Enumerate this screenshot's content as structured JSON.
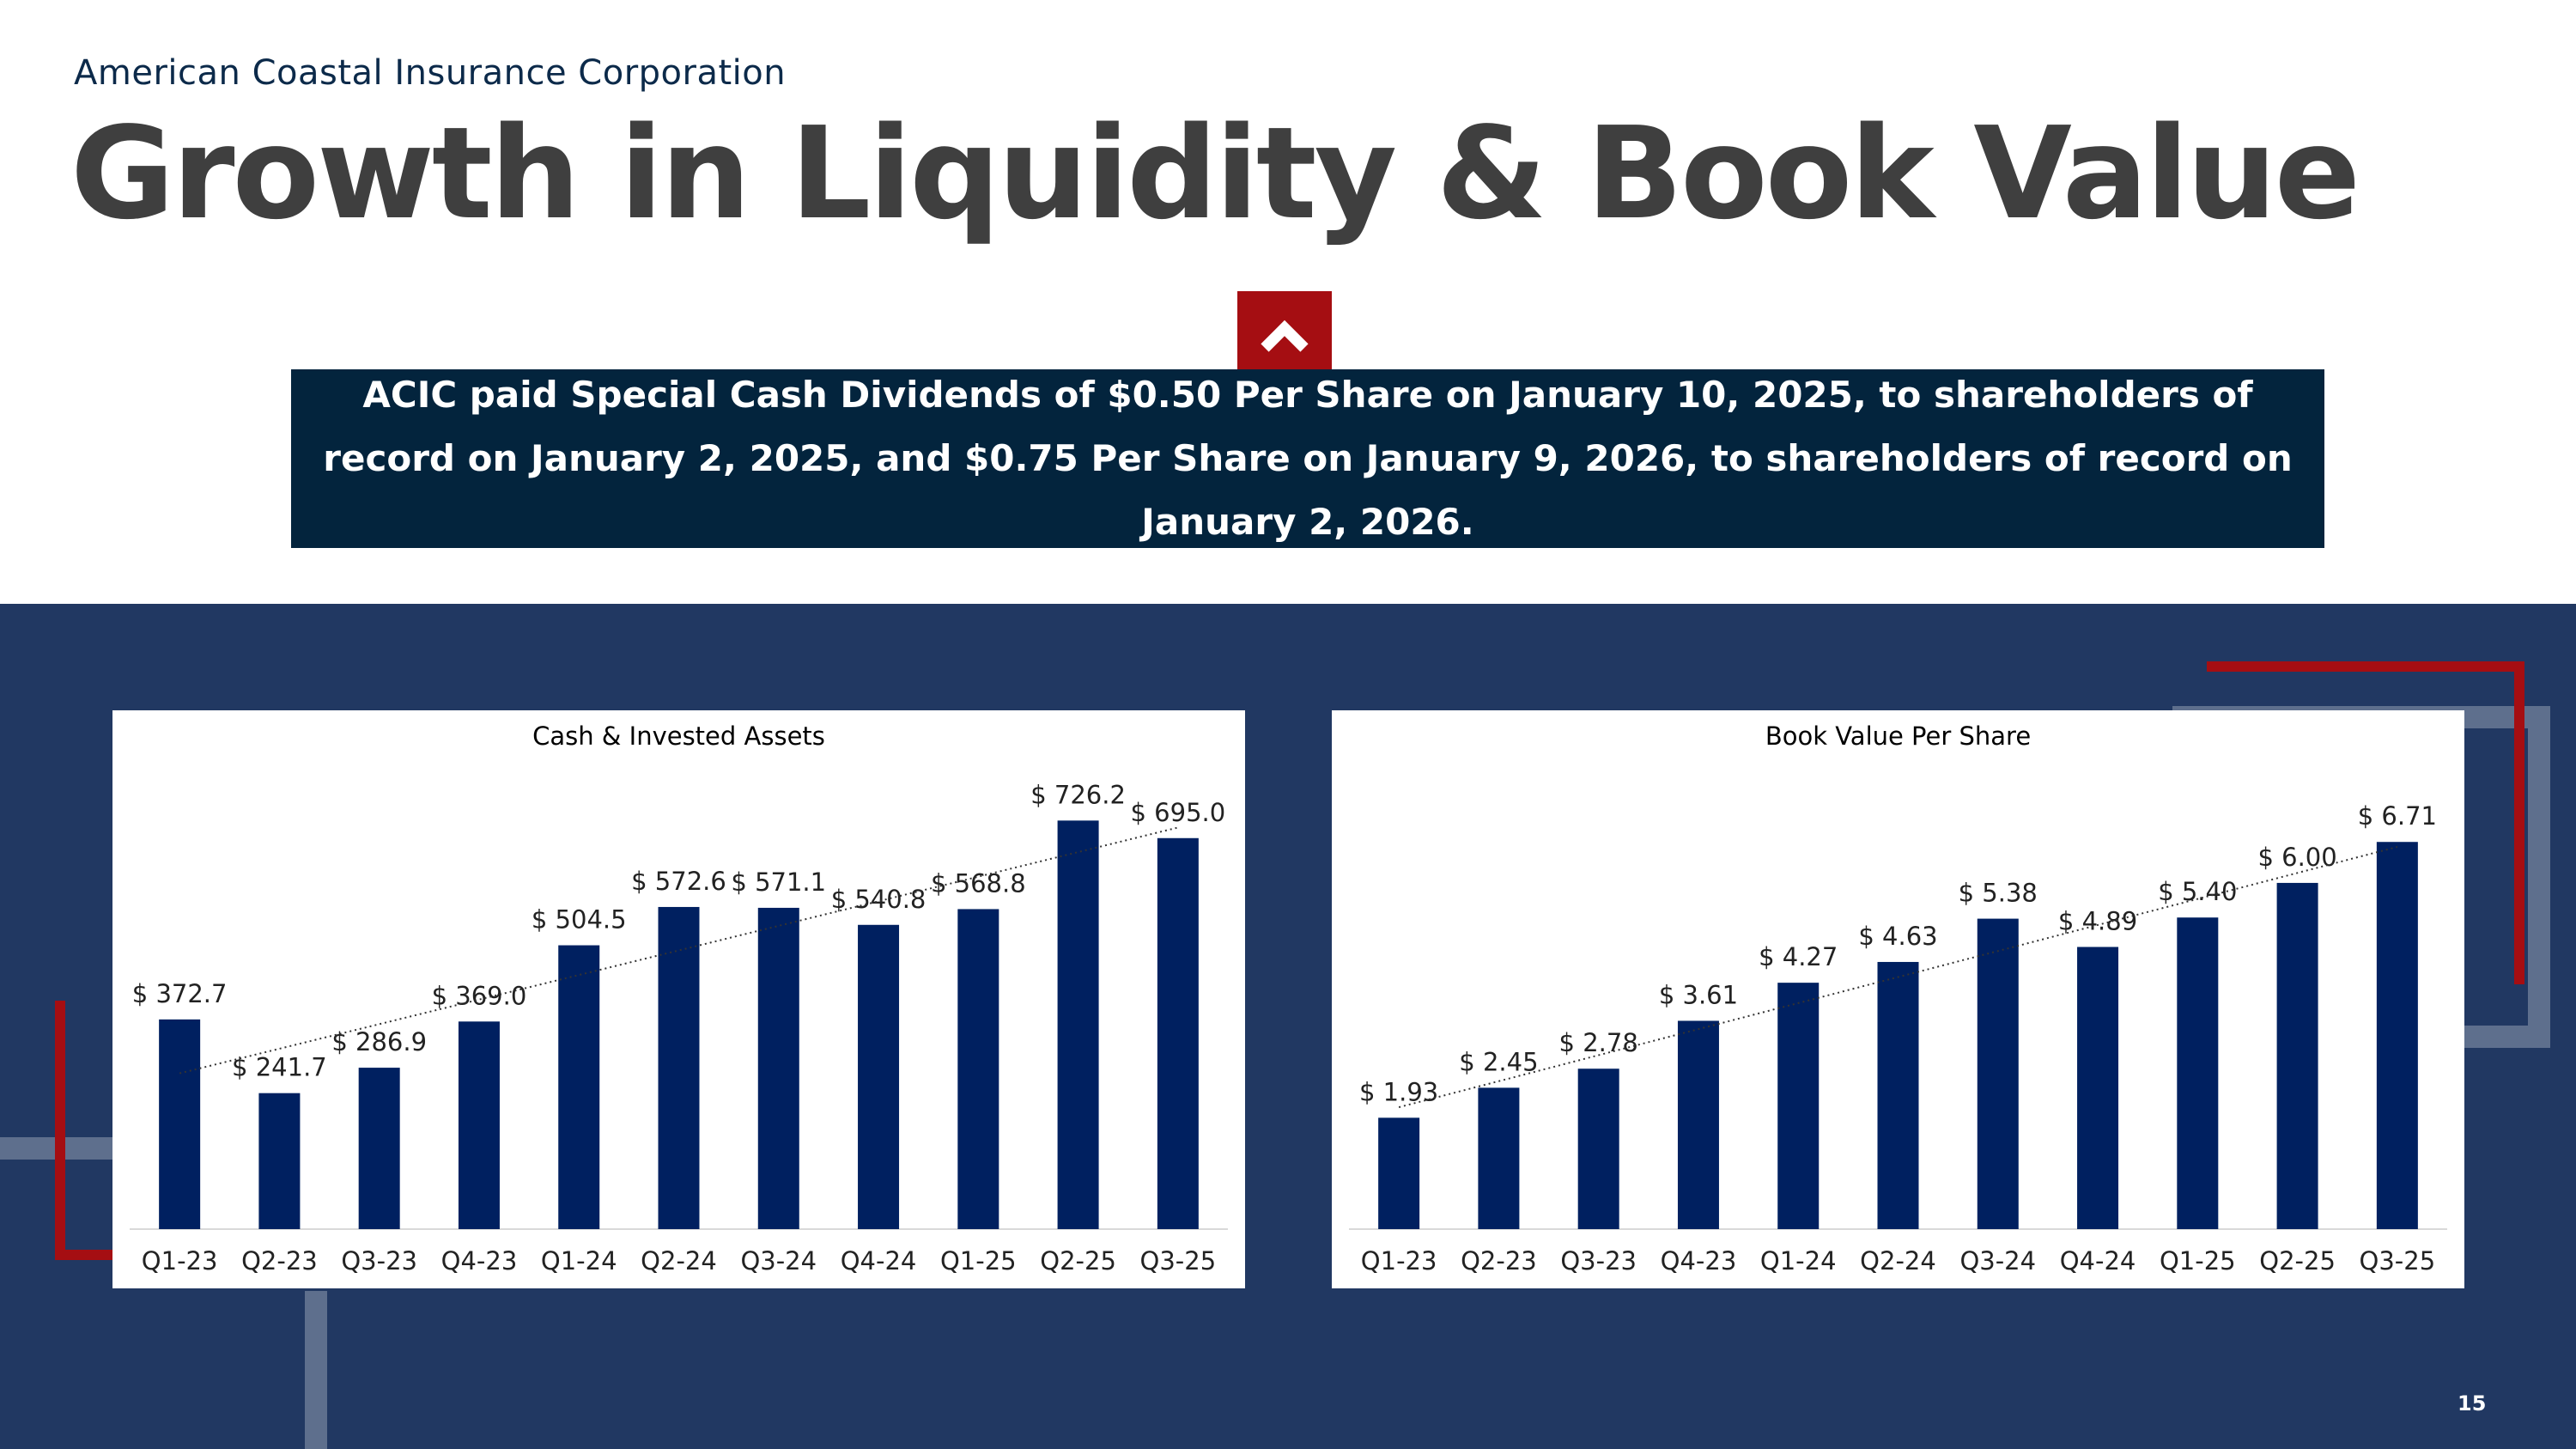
{
  "header": {
    "company": "American Coastal Insurance Corporation",
    "title": "Growth in Liquidity & Book Value"
  },
  "callout": {
    "icon": "chevron-up-icon",
    "text": "ACIC paid Special Cash Dividends of $0.50 Per Share  on January 10, 2025, to shareholders of record on January 2, 2025, and $0.75 Per Share on January 9, 2026, to shareholders of record on January 2, 2026."
  },
  "colors": {
    "band": "#213862",
    "callout_bg": "#03243d",
    "accent_red": "#a50e12",
    "bar": "#002060"
  },
  "page_number": "15",
  "chart_data": [
    {
      "type": "bar",
      "title": "Cash & Invested Assets",
      "categories": [
        "Q1-23",
        "Q2-23",
        "Q3-23",
        "Q4-23",
        "Q1-24",
        "Q2-24",
        "Q3-24",
        "Q4-24",
        "Q1-25",
        "Q2-25",
        "Q3-25"
      ],
      "values": [
        372.7,
        241.7,
        286.9,
        369.0,
        504.5,
        572.6,
        571.1,
        540.8,
        568.8,
        726.2,
        695.0
      ],
      "labels": [
        "$ 372.7",
        "$ 241.7",
        "$ 286.9",
        "$ 369.0",
        "$ 504.5",
        "$ 572.6",
        "$ 571.1",
        "$ 540.8",
        "$ 568.8",
        "$ 726.2",
        "$ 695.0"
      ],
      "ylim": [
        0,
        800
      ],
      "trendline": "linear",
      "grid": false,
      "legend": "none"
    },
    {
      "type": "bar",
      "title": "Book Value Per Share",
      "categories": [
        "Q1-23",
        "Q2-23",
        "Q3-23",
        "Q4-23",
        "Q1-24",
        "Q2-24",
        "Q3-24",
        "Q4-24",
        "Q1-25",
        "Q2-25",
        "Q3-25"
      ],
      "values": [
        1.93,
        2.45,
        2.78,
        3.61,
        4.27,
        4.63,
        5.38,
        4.89,
        5.4,
        6.0,
        6.71
      ],
      "labels": [
        "$ 1.93",
        "$ 2.45",
        "$ 2.78",
        "$ 3.61",
        "$ 4.27",
        "$ 4.63",
        "$ 5.38",
        "$ 4.89",
        "$ 5.40",
        "$ 6.00",
        "$ 6.71"
      ],
      "ylim": [
        0,
        7.8
      ],
      "trendline": "linear",
      "grid": false,
      "legend": "none"
    }
  ]
}
